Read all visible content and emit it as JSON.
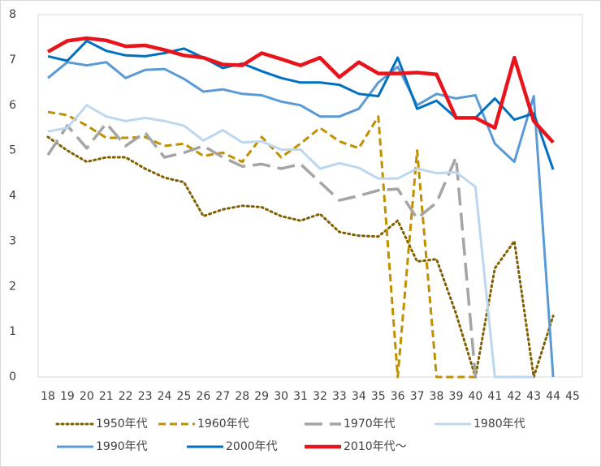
{
  "chart_data": {
    "type": "line",
    "categories": [
      "18",
      "19",
      "20",
      "21",
      "22",
      "23",
      "24",
      "25",
      "26",
      "27",
      "28",
      "29",
      "30",
      "31",
      "32",
      "33",
      "34",
      "35",
      "36",
      "37",
      "38",
      "39",
      "40",
      "41",
      "42",
      "43",
      "44",
      "45"
    ],
    "ylim": [
      0,
      8
    ],
    "yticks": [
      0,
      1,
      2,
      3,
      4,
      5,
      6,
      7,
      8
    ],
    "grid": false,
    "legend": "bottom",
    "series": [
      {
        "name": "1950年代",
        "color": "#7f6000",
        "dash": "dotted",
        "values": [
          5.3,
          5.0,
          4.75,
          4.85,
          4.85,
          4.6,
          4.4,
          4.3,
          3.55,
          3.7,
          3.78,
          3.75,
          3.55,
          3.45,
          3.6,
          3.2,
          3.12,
          3.1,
          3.45,
          2.55,
          2.6,
          1.4,
          0,
          2.4,
          3.0,
          0,
          1.35,
          null
        ]
      },
      {
        "name": "1960年代",
        "color": "#bf9000",
        "dash": "dashed",
        "values": [
          5.85,
          5.78,
          5.55,
          5.28,
          5.28,
          5.3,
          5.1,
          5.15,
          4.88,
          4.95,
          4.75,
          5.3,
          4.85,
          5.15,
          5.5,
          5.2,
          5.05,
          5.75,
          0,
          5.0,
          0,
          0,
          0,
          null,
          null,
          null,
          null,
          null
        ]
      },
      {
        "name": "1970年代",
        "color": "#a5a5a5",
        "dash": "longdash",
        "values": [
          4.9,
          5.55,
          5.05,
          5.6,
          5.1,
          5.4,
          4.85,
          4.95,
          5.1,
          4.85,
          4.65,
          4.7,
          4.6,
          4.7,
          4.3,
          3.9,
          4.0,
          4.12,
          4.15,
          3.5,
          3.85,
          4.85,
          0,
          null,
          null,
          null,
          null,
          null
        ]
      },
      {
        "name": "1980年代",
        "color": "#bdd7ee",
        "dash": "solid",
        "values": [
          5.42,
          5.5,
          6.0,
          5.75,
          5.65,
          5.72,
          5.65,
          5.55,
          5.22,
          5.45,
          5.18,
          5.2,
          5.02,
          5.02,
          4.6,
          4.72,
          4.62,
          4.38,
          4.38,
          4.6,
          4.5,
          4.52,
          4.2,
          0,
          0,
          0,
          null,
          null
        ]
      },
      {
        "name": "1990年代",
        "color": "#5b9bd5",
        "dash": "solid",
        "values": [
          6.6,
          6.95,
          6.88,
          6.95,
          6.6,
          6.78,
          6.8,
          6.58,
          6.3,
          6.35,
          6.25,
          6.22,
          6.08,
          6.0,
          5.75,
          5.75,
          5.92,
          6.5,
          6.85,
          6.0,
          6.25,
          6.15,
          6.22,
          5.15,
          4.75,
          6.2,
          0,
          null
        ]
      },
      {
        "name": "2000年代",
        "color": "#0070c0",
        "dash": "solid",
        "values": [
          7.08,
          6.98,
          7.42,
          7.2,
          7.1,
          7.08,
          7.15,
          7.25,
          7.05,
          6.82,
          6.92,
          6.75,
          6.6,
          6.5,
          6.5,
          6.45,
          6.25,
          6.2,
          7.05,
          5.92,
          6.1,
          5.72,
          5.72,
          6.15,
          5.68,
          5.82,
          4.58,
          null
        ]
      },
      {
        "name": "2010年代～",
        "color": "#e8141b",
        "dash": "thick",
        "values": [
          7.18,
          7.42,
          7.48,
          7.43,
          7.3,
          7.32,
          7.22,
          7.1,
          7.05,
          6.9,
          6.88,
          7.15,
          7.02,
          6.88,
          7.05,
          6.62,
          6.95,
          6.7,
          6.7,
          6.72,
          6.68,
          5.72,
          5.72,
          5.5,
          7.05,
          5.65,
          5.18,
          null
        ]
      }
    ]
  }
}
